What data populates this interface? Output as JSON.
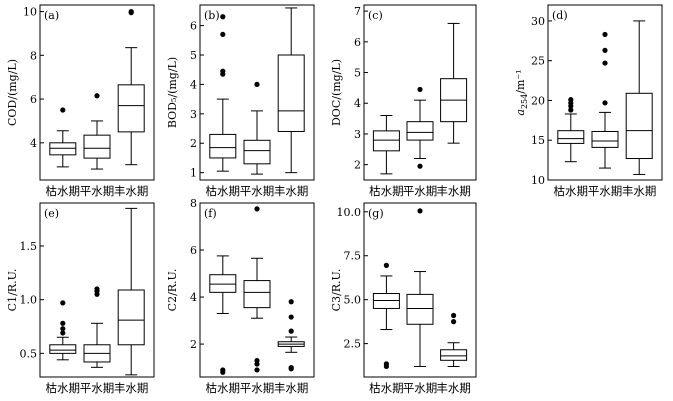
{
  "figure": {
    "categories": [
      "枯水期",
      "平水期",
      "丰水期"
    ]
  },
  "chart_data": [
    {
      "type": "box",
      "panel_label": "(a)",
      "ylabel": "COD/(mg/L)",
      "ylim": [
        2.3,
        10.3
      ],
      "yticks": [
        4,
        6,
        8,
        10
      ],
      "categories": [
        "枯水期",
        "平水期",
        "丰水期"
      ],
      "boxes": [
        {
          "min": 2.9,
          "q1": 3.45,
          "median": 3.75,
          "q3": 4.0,
          "max": 4.55,
          "outliers": [
            5.5
          ]
        },
        {
          "min": 2.8,
          "q1": 3.3,
          "median": 3.75,
          "q3": 4.35,
          "max": 5.0,
          "outliers": [
            6.15
          ]
        },
        {
          "min": 3.0,
          "q1": 4.5,
          "median": 5.7,
          "q3": 6.65,
          "max": 8.35,
          "outliers": [
            9.95,
            10.0
          ]
        }
      ]
    },
    {
      "type": "box",
      "panel_label": "(b)",
      "ylabel": "BOD₅/(mg/L)",
      "ylim": [
        0.75,
        6.7
      ],
      "yticks": [
        1,
        2,
        3,
        4,
        5,
        6
      ],
      "categories": [
        "枯水期",
        "平水期",
        "丰水期"
      ],
      "boxes": [
        {
          "min": 1.05,
          "q1": 1.5,
          "median": 1.85,
          "q3": 2.3,
          "max": 3.5,
          "outliers": [
            4.35,
            4.45,
            5.7,
            6.3
          ]
        },
        {
          "min": 0.95,
          "q1": 1.3,
          "median": 1.75,
          "q3": 2.1,
          "max": 3.1,
          "outliers": [
            4.0
          ]
        },
        {
          "min": 1.0,
          "q1": 2.4,
          "median": 3.1,
          "q3": 5.0,
          "max": 6.6,
          "outliers": []
        }
      ]
    },
    {
      "type": "box",
      "panel_label": "(c)",
      "ylabel": "DOC/(mg/L)",
      "ylim": [
        1.5,
        7.2
      ],
      "yticks": [
        2,
        3,
        4,
        5,
        6,
        7
      ],
      "categories": [
        "枯水期",
        "平水期",
        "丰水期"
      ],
      "boxes": [
        {
          "min": 1.7,
          "q1": 2.45,
          "median": 2.8,
          "q3": 3.1,
          "max": 3.6,
          "outliers": []
        },
        {
          "min": 2.2,
          "q1": 2.8,
          "median": 3.05,
          "q3": 3.4,
          "max": 4.1,
          "outliers": [
            1.95,
            4.45
          ]
        },
        {
          "min": 2.7,
          "q1": 3.4,
          "median": 4.1,
          "q3": 4.8,
          "max": 6.6,
          "outliers": []
        }
      ]
    },
    {
      "type": "box",
      "panel_label": "(d)",
      "ylabel_main": "a",
      "ylabel_sub": "254",
      "ylabel_unit": "/m⁻¹",
      "ylim": [
        10,
        32
      ],
      "yticks": [
        10,
        15,
        20,
        25,
        30
      ],
      "categories": [
        "枯水期",
        "平水期",
        "丰水期"
      ],
      "boxes": [
        {
          "min": 12.3,
          "q1": 14.6,
          "median": 15.2,
          "q3": 16.2,
          "max": 18.3,
          "outliers": [
            18.8,
            19.3,
            19.7,
            20.1
          ]
        },
        {
          "min": 11.5,
          "q1": 14.1,
          "median": 14.9,
          "q3": 16.1,
          "max": 18.5,
          "outliers": [
            19.7,
            24.7,
            26.3,
            28.3
          ]
        },
        {
          "min": 10.7,
          "q1": 12.7,
          "median": 16.2,
          "q3": 20.9,
          "max": 30.0,
          "outliers": []
        }
      ]
    },
    {
      "type": "box",
      "panel_label": "(e)",
      "ylabel": "C1/R.U.",
      "ylim": [
        0.28,
        1.9
      ],
      "yticks": [
        0.5,
        1.0,
        1.5
      ],
      "categories": [
        "枯水期",
        "平水期",
        "丰水期"
      ],
      "boxes": [
        {
          "min": 0.44,
          "q1": 0.5,
          "median": 0.53,
          "q3": 0.58,
          "max": 0.65,
          "outliers": [
            0.69,
            0.73,
            0.78,
            0.97
          ]
        },
        {
          "min": 0.37,
          "q1": 0.42,
          "median": 0.5,
          "q3": 0.58,
          "max": 0.78,
          "outliers": [
            1.05,
            1.08,
            1.1
          ]
        },
        {
          "min": 0.3,
          "q1": 0.58,
          "median": 0.81,
          "q3": 1.09,
          "max": 1.85,
          "outliers": []
        }
      ]
    },
    {
      "type": "box",
      "panel_label": "(f)",
      "ylabel": "C2/R.U.",
      "ylim": [
        0.6,
        8.0
      ],
      "yticks": [
        2,
        4,
        6,
        8
      ],
      "categories": [
        "枯水期",
        "平水期",
        "丰水期"
      ],
      "boxes": [
        {
          "min": 3.3,
          "q1": 4.2,
          "median": 4.55,
          "q3": 4.95,
          "max": 5.75,
          "outliers": [
            0.8,
            0.9
          ]
        },
        {
          "min": 3.1,
          "q1": 3.55,
          "median": 4.2,
          "q3": 4.7,
          "max": 5.65,
          "outliers": [
            0.9,
            1.15,
            1.3,
            7.75
          ]
        },
        {
          "min": 1.65,
          "q1": 1.9,
          "median": 2.0,
          "q3": 2.1,
          "max": 2.3,
          "outliers": [
            0.95,
            1.0,
            2.55,
            3.15,
            3.8
          ]
        }
      ]
    },
    {
      "type": "box",
      "panel_label": "(g)",
      "ylabel": "C3/R.U.",
      "ylim": [
        0.6,
        10.5
      ],
      "yticks": [
        2.5,
        5.0,
        7.5,
        10.0
      ],
      "categories": [
        "枯水期",
        "平水期",
        "丰水期"
      ],
      "boxes": [
        {
          "min": 3.3,
          "q1": 4.5,
          "median": 4.95,
          "q3": 5.35,
          "max": 6.35,
          "outliers": [
            1.2,
            1.35,
            6.95
          ]
        },
        {
          "min": 1.2,
          "q1": 3.6,
          "median": 4.5,
          "q3": 5.3,
          "max": 6.6,
          "outliers": [
            10.05
          ]
        },
        {
          "min": 1.2,
          "q1": 1.55,
          "median": 1.8,
          "q3": 2.15,
          "max": 2.55,
          "outliers": [
            3.75,
            4.1
          ]
        }
      ]
    }
  ]
}
